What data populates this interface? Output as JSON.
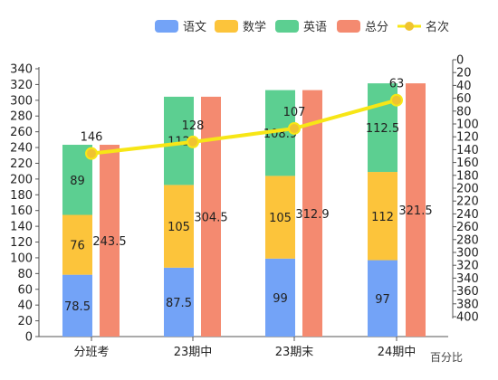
{
  "chart_data": {
    "type": "bar",
    "categories": [
      "分班考",
      "23期中",
      "23期末",
      "24期中"
    ],
    "stacked_series": [
      {
        "name": "语文",
        "color": "#73a3f7",
        "values": [
          78.5,
          87.5,
          99,
          97
        ]
      },
      {
        "name": "数学",
        "color": "#fcc43b",
        "values": [
          76,
          105,
          105,
          112
        ]
      },
      {
        "name": "英语",
        "color": "#5ccf91",
        "values": [
          89,
          112,
          108.9,
          112.5
        ]
      }
    ],
    "total_series": {
      "name": "总分",
      "color": "#f48a70",
      "values": [
        243.5,
        304.5,
        312.9,
        321.5
      ]
    },
    "line_series": {
      "name": "名次",
      "color": "#f7e616",
      "marker_color": "#f0c330",
      "values": [
        146,
        128,
        107,
        63
      ]
    },
    "legend": [
      "语文",
      "数学",
      "英语",
      "总分",
      "名次"
    ],
    "legend_position": "top-right",
    "y_left": {
      "range": [
        0,
        340
      ],
      "ticks": [
        0,
        20,
        40,
        60,
        80,
        100,
        120,
        140,
        160,
        180,
        200,
        220,
        240,
        260,
        280,
        300,
        320,
        340
      ]
    },
    "y_right": {
      "range": [
        0,
        400
      ],
      "inverted": true,
      "ticks": [
        0,
        20,
        40,
        60,
        80,
        100,
        120,
        140,
        160,
        180,
        200,
        220,
        240,
        260,
        280,
        300,
        320,
        340,
        360,
        380,
        400
      ]
    },
    "x_label": "百分比",
    "grid": false
  }
}
